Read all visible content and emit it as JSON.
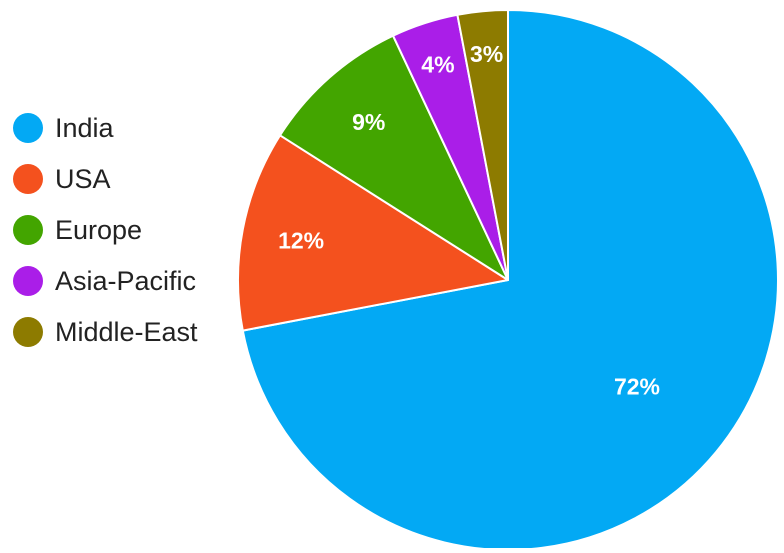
{
  "chart_data": {
    "type": "pie",
    "title": "",
    "legend_position": "left",
    "start_angle_deg": 0,
    "direction": "clockwise",
    "slices": [
      {
        "label": "India",
        "value": 72,
        "value_label": "72%",
        "color": "#03A9F4"
      },
      {
        "label": "USA",
        "value": 12,
        "value_label": "12%",
        "color": "#F4511E"
      },
      {
        "label": "Europe",
        "value": 9,
        "value_label": "9%",
        "color": "#43A500"
      },
      {
        "label": "Asia-Pacific",
        "value": 4,
        "value_label": "4%",
        "color": "#AA1EE8"
      },
      {
        "label": "Middle-East",
        "value": 3,
        "value_label": "3%",
        "color": "#8D7B00"
      }
    ]
  }
}
